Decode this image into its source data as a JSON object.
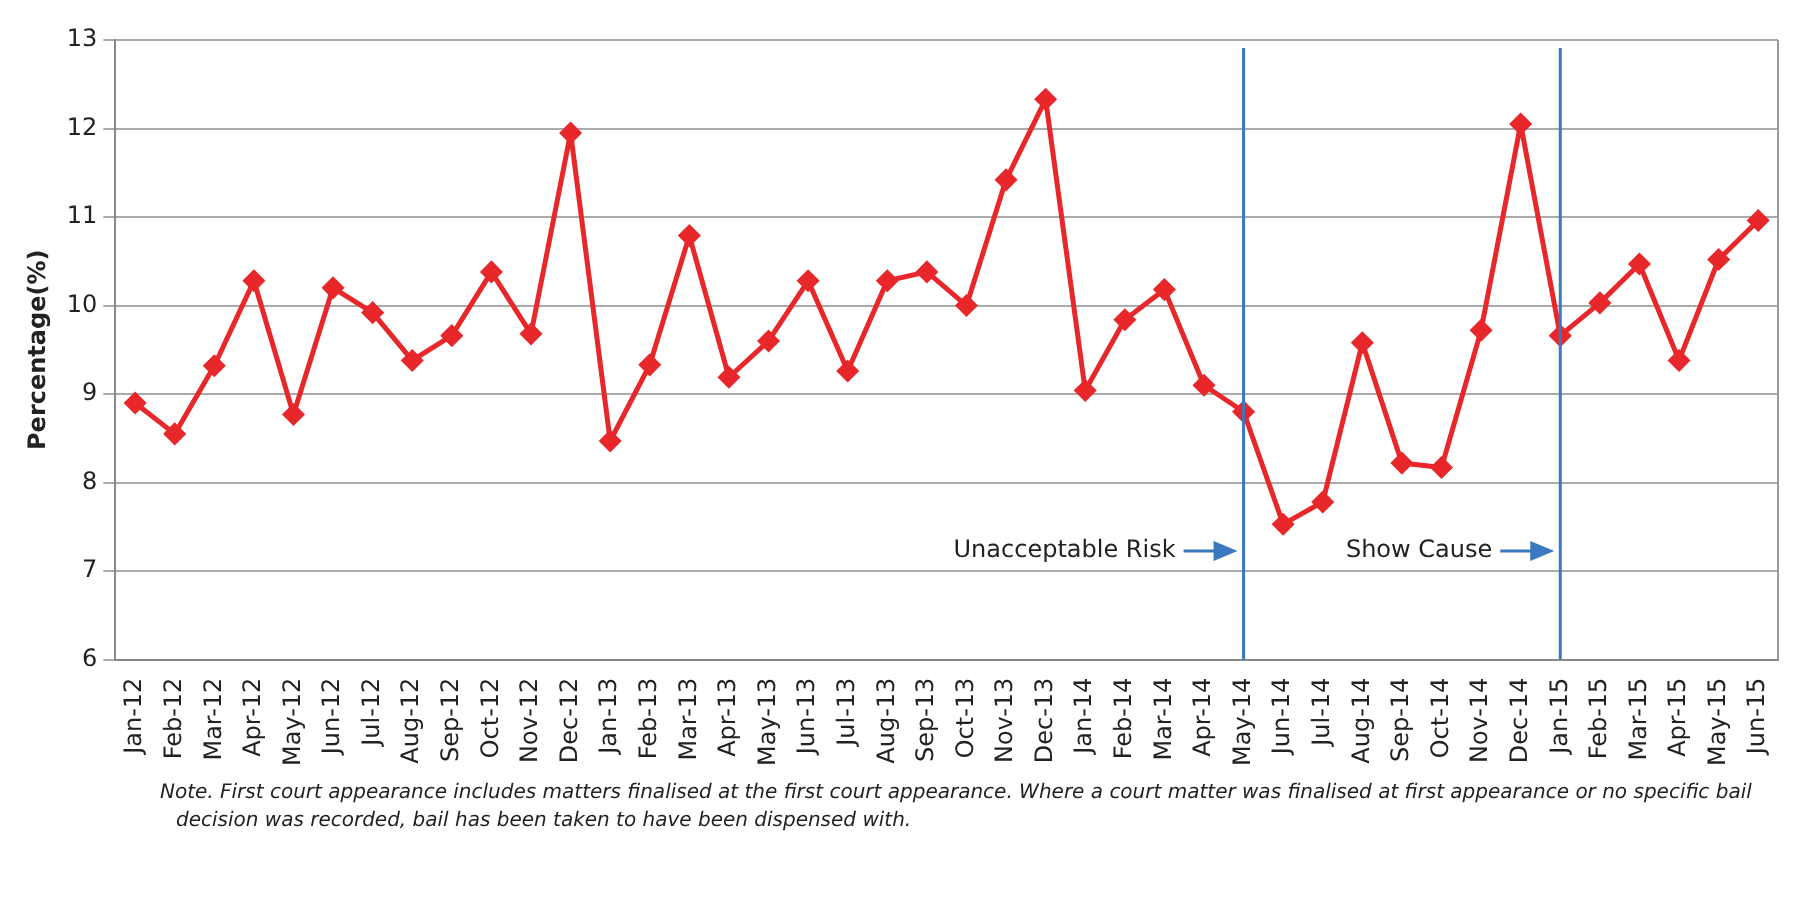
{
  "chart_data": {
    "type": "line",
    "ylabel": "Percentage(%)",
    "categories": [
      "Jan-12",
      "Feb-12",
      "Mar-12",
      "Apr-12",
      "May-12",
      "Jun-12",
      "Jul-12",
      "Aug-12",
      "Sep-12",
      "Oct-12",
      "Nov-12",
      "Dec-12",
      "Jan-13",
      "Feb-13",
      "Mar-13",
      "Apr-13",
      "May-13",
      "Jun-13",
      "Jul-13",
      "Aug-13",
      "Sep-13",
      "Oct-13",
      "Nov-13",
      "Dec-13",
      "Jan-14",
      "Feb-14",
      "Mar-14",
      "Apr-14",
      "May-14",
      "Jun-14",
      "Jul-14",
      "Aug-14",
      "Sep-14",
      "Oct-14",
      "Nov-14",
      "Dec-14",
      "Jan-15",
      "Feb-15",
      "Mar-15",
      "Apr-15",
      "May-15",
      "Jun-15"
    ],
    "series": [
      {
        "color": "#e8272a",
        "values": [
          8.9,
          8.55,
          9.32,
          10.28,
          8.77,
          10.2,
          9.92,
          9.38,
          9.66,
          10.38,
          9.68,
          11.95,
          8.47,
          9.33,
          10.79,
          9.19,
          9.6,
          10.28,
          9.26,
          10.28,
          10.38,
          10.0,
          11.42,
          12.33,
          9.04,
          9.84,
          10.18,
          9.1,
          8.8,
          7.53,
          7.78,
          9.58,
          8.22,
          8.17,
          9.72,
          12.05,
          9.66,
          10.03,
          10.47,
          9.38,
          10.52,
          10.96
        ]
      }
    ],
    "ylim": [
      6,
      13
    ],
    "yticks": [
      6,
      7,
      8,
      9,
      10,
      11,
      12,
      13
    ],
    "grid": "y",
    "legend": false,
    "marker": "diamond",
    "line_style": "solid",
    "ref_lines": [
      {
        "axis": "x",
        "value": "May-14",
        "label": "Unacceptable Risk",
        "color": "#3a78c0"
      },
      {
        "axis": "x",
        "value": "Jan-15",
        "label": "Show Cause",
        "color": "#3a78c0"
      }
    ],
    "annotations": [
      "Note. First court appearance includes matters finalised at the first court appearance. Where a court matter was finalised at first appearance or no specific bail decision was recorded, bail has been taken to have been dispensed with."
    ]
  }
}
